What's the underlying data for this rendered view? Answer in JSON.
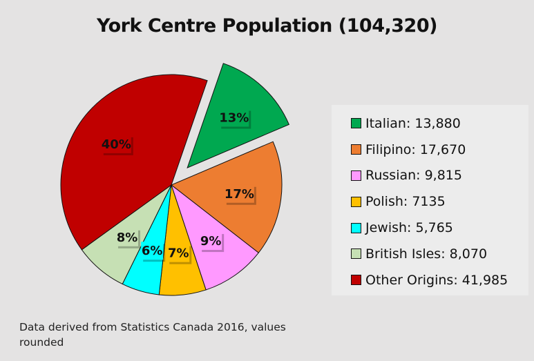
{
  "chart_data": {
    "type": "pie",
    "title": "York Centre Population (104,320)",
    "slices": [
      {
        "name": "Italian",
        "value": 13880,
        "label": "Italian: 13,880",
        "pct_label": "13%",
        "color": "#00a850",
        "exploded": true
      },
      {
        "name": "Filipino",
        "value": 17670,
        "label": "Filipino: 17,670",
        "pct_label": "17%",
        "color": "#ed7d31",
        "exploded": false
      },
      {
        "name": "Russian",
        "value": 9815,
        "label": "Russian: 9,815",
        "pct_label": "9%",
        "color": "#ff99ff",
        "exploded": false
      },
      {
        "name": "Polish",
        "value": 7135,
        "label": "Polish: 7135",
        "pct_label": "7%",
        "color": "#ffc000",
        "exploded": false
      },
      {
        "name": "Jewish",
        "value": 5765,
        "label": "Jewish: 5,765",
        "pct_label": "6%",
        "color": "#00ffff",
        "exploded": false
      },
      {
        "name": "British Isles",
        "value": 8070,
        "label": "British Isles: 8,070",
        "pct_label": "8%",
        "color": "#c6e0b4",
        "exploded": false
      },
      {
        "name": "Other Origins",
        "value": 41985,
        "label": "Other Origins: 41,985",
        "pct_label": "40%",
        "color": "#c00000",
        "exploded": false
      }
    ],
    "legend_position": "right"
  },
  "footnote": "Data derived from Statistics Canada 2016, values rounded"
}
